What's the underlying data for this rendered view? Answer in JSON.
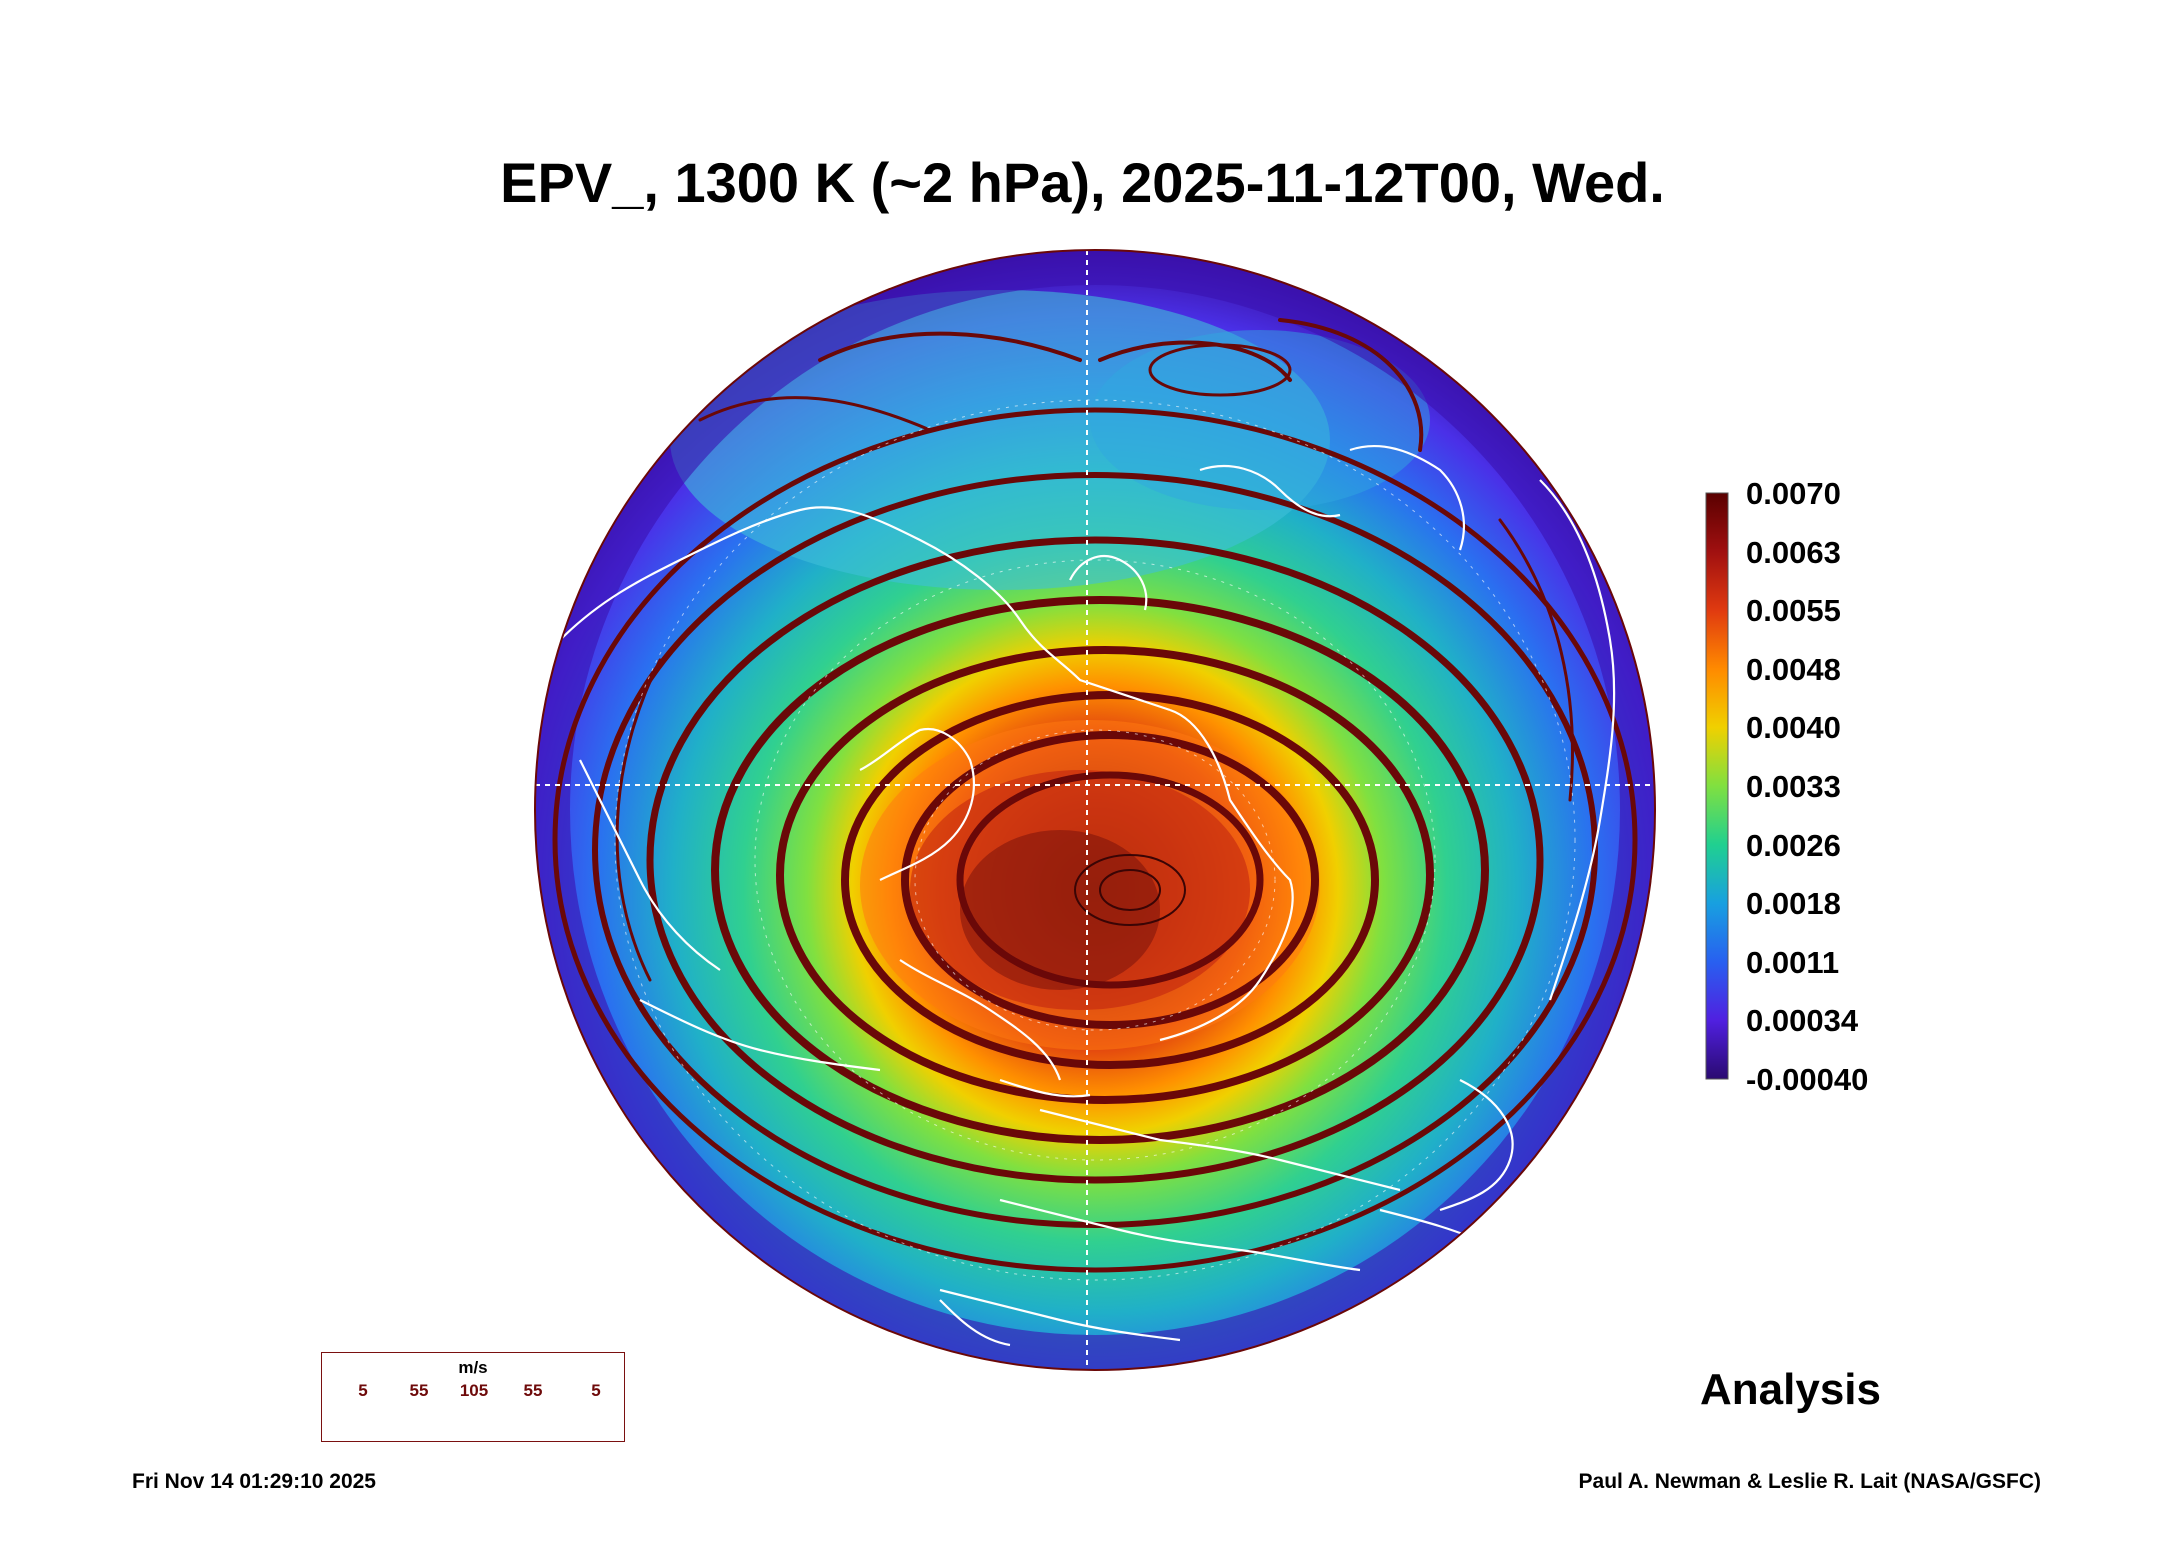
{
  "title": "EPV_, 1300 K (~2 hPa), 2025-11-12T00, Wed.",
  "colorbar": {
    "labels": [
      "0.0070",
      "0.0063",
      "0.0055",
      "0.0048",
      "0.0040",
      "0.0033",
      "0.0026",
      "0.0018",
      "0.0011",
      "0.00034",
      "-0.00040"
    ],
    "colors": [
      "#5a0000",
      "#a01010",
      "#e03a10",
      "#ff8a00",
      "#f0d000",
      "#80e040",
      "#20d090",
      "#18a0e0",
      "#2860f0",
      "#5020e0",
      "#2a0a70"
    ]
  },
  "legend": {
    "unit": "m/s",
    "ticks": [
      "5",
      "55",
      "105",
      "55",
      "5"
    ]
  },
  "panel_label": "Analysis",
  "timestamp": "Fri Nov 14 01:29:10 2025",
  "credit": "Paul A. Newman & Leslie R. Lait (NASA/GSFC)",
  "colors": {
    "vortex_core": "#6b0a0a",
    "streamline": "#6a0808",
    "coast": "#ffffff"
  }
}
